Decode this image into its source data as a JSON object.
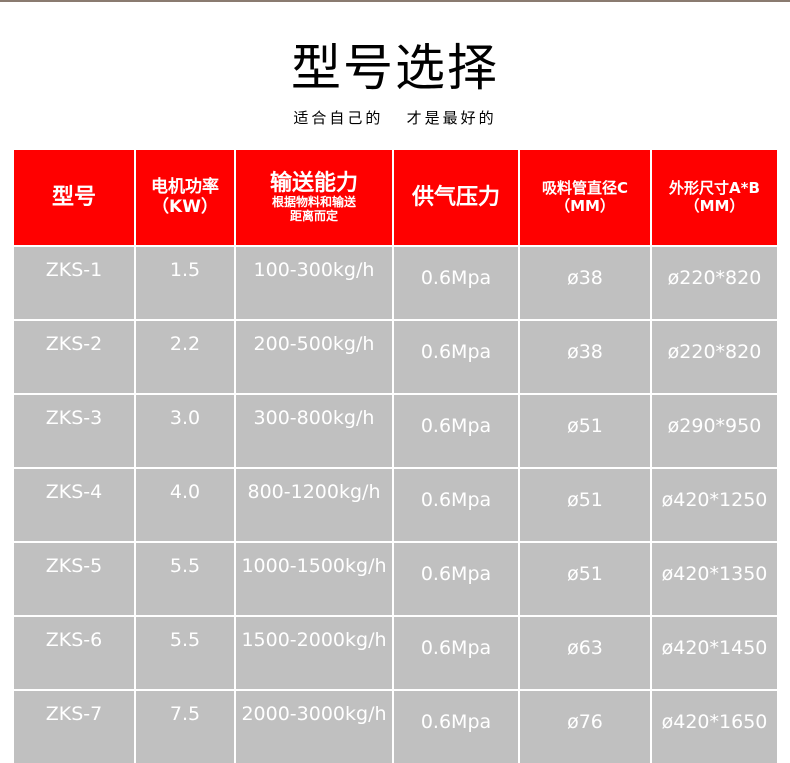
{
  "title": "型号选择",
  "subtitle": "适合自己的   才是最好的",
  "headers": {
    "model": "型号",
    "motor": "电机功率",
    "motor_unit": "（KW）",
    "capacity": "输送能力",
    "capacity_note1": "根据物料和输送",
    "capacity_note2": "距离而定",
    "pressure": "供气压力",
    "pipe": "吸料管直径C",
    "pipe_unit": "（MM）",
    "size": "外形尺寸A*B",
    "size_unit": "（MM）"
  },
  "rows": [
    [
      "ZKS-1",
      "1.5",
      "100-300kg/h",
      "0.6Mpa",
      "ø38",
      "ø220*820"
    ],
    [
      "ZKS-2",
      "2.2",
      "200-500kg/h",
      "0.6Mpa",
      "ø38",
      "ø220*820"
    ],
    [
      "ZKS-3",
      "3.0",
      "300-800kg/h",
      "0.6Mpa",
      "ø51",
      "ø290*950"
    ],
    [
      "ZKS-4",
      "4.0",
      "800-1200kg/h",
      "0.6Mpa",
      "ø51",
      "ø420*1250"
    ],
    [
      "ZKS-5",
      "5.5",
      "1000-1500kg/h",
      "0.6Mpa",
      "ø51",
      "ø420*1350"
    ],
    [
      "ZKS-6",
      "5.5",
      "1500-2000kg/h",
      "0.6Mpa",
      "ø63",
      "ø420*1450"
    ],
    [
      "ZKS-7",
      "7.5",
      "2000-3000kg/h",
      "0.6Mpa",
      "ø76",
      "ø420*1650"
    ]
  ],
  "colors": {
    "header": "#ff0000",
    "row": "#c0c0c0"
  }
}
